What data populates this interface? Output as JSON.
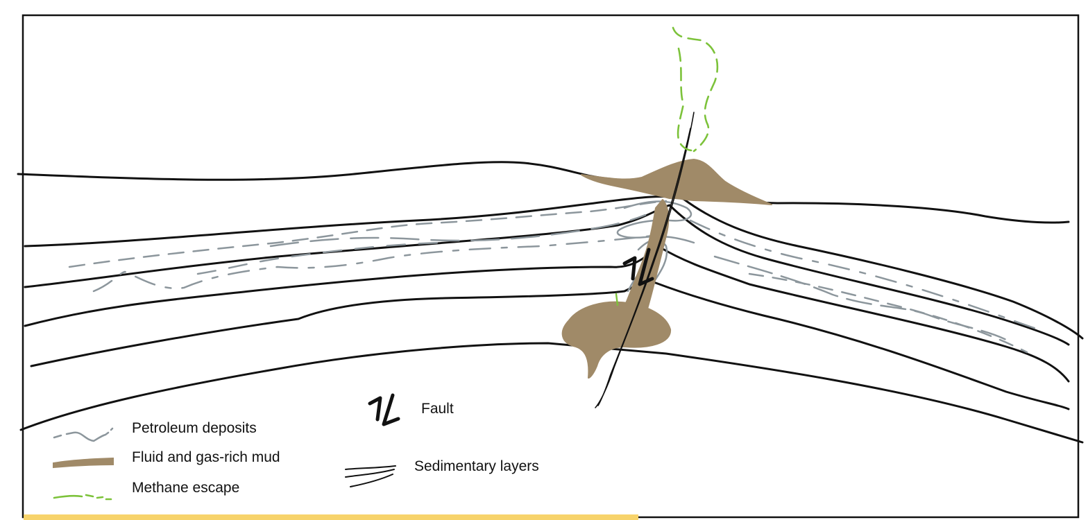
{
  "colors": {
    "frame": "#111111",
    "sediment_line": "#111111",
    "petroleum": "#8c969c",
    "mud": "#a08a68",
    "methane": "#7cc23a",
    "bottom_strip": "#f7d36b"
  },
  "legend": {
    "petroleum_label": "Petroleum deposits",
    "mud_label": "Fluid and gas-rich mud",
    "methane_label": "Methane escape",
    "fault_label": "Fault",
    "sedimentary_label": "Sedimentary layers"
  },
  "icons": [
    "petroleum-swatch-icon",
    "mud-swatch-icon",
    "methane-swatch-icon",
    "fault-arrows-icon",
    "sedimentary-layers-icon"
  ]
}
